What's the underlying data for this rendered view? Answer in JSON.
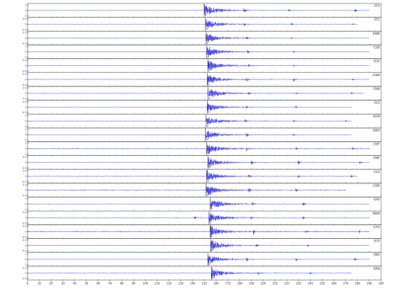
{
  "chart_data": {
    "type": "line",
    "title": "",
    "xlabel": "",
    "ylabel": "",
    "xlim": [
      0,
      300
    ],
    "x_ticks": [
      0,
      10,
      20,
      30,
      40,
      50,
      60,
      70,
      80,
      90,
      100,
      110,
      120,
      130,
      140,
      150,
      160,
      170,
      180,
      190,
      200,
      210,
      220,
      230,
      240,
      250,
      260,
      270,
      280,
      290,
      300
    ],
    "grid": false,
    "legend": "none",
    "line_color": "#0000dd",
    "pick_color": "#000000",
    "pick_label": "P",
    "trace_y_ticks": [
      [
        "2",
        "0",
        "-2"
      ],
      [
        "0.5",
        "0",
        "-0.5"
      ],
      [
        "0.5",
        "0",
        "-0.5"
      ],
      [
        "1",
        "0",
        "-1"
      ],
      [
        "0.5",
        "0",
        "-0.5"
      ],
      [
        "0.5",
        "0",
        "-0.5"
      ],
      [
        "0.5",
        "0",
        "-0.5"
      ],
      [
        "0.5",
        "0",
        "-0.5"
      ],
      [
        "2",
        "0",
        "-2"
      ],
      [
        "1",
        "0",
        "-1"
      ],
      [
        "1",
        "0",
        "-1"
      ],
      [
        "0.5",
        "0",
        "-0.5"
      ],
      [
        "0.5",
        "0",
        "-0.5"
      ],
      [
        "0.5",
        "0",
        "-0.5"
      ],
      [
        "1",
        "0",
        "-1"
      ],
      [
        "0.5",
        "0",
        "-0.5"
      ],
      [
        "0.5",
        "0",
        "-0.5"
      ],
      [
        "0.5",
        "0",
        "-0.5"
      ],
      [
        "1",
        "0",
        "-1"
      ],
      [
        "0.2",
        "0",
        "-0.2"
      ]
    ],
    "series": [
      {
        "name": "STA",
        "onset": 150.0,
        "end": 290,
        "amp": 0.95,
        "noise": 0.06,
        "bursts": [
          [
            184,
            0.45
          ],
          [
            222,
            0.25
          ],
          [
            278,
            0.3
          ]
        ]
      },
      {
        "name": "STC",
        "onset": 151.0,
        "end": 280,
        "amp": 0.85,
        "noise": 0.05,
        "bursts": [
          [
            184,
            0.25
          ],
          [
            224,
            0.2
          ],
          [
            276,
            0.15
          ]
        ]
      },
      {
        "name": "SWB",
        "onset": 151.5,
        "end": 290,
        "amp": 0.9,
        "noise": 0.06,
        "bursts": [
          [
            186,
            0.35
          ],
          [
            224,
            0.25
          ]
        ]
      },
      {
        "name": "CSB",
        "onset": 152.0,
        "end": 290,
        "amp": 0.9,
        "noise": 0.05,
        "bursts": [
          [
            187,
            0.35
          ],
          [
            226,
            0.2
          ]
        ]
      },
      {
        "name": "SUS",
        "onset": 153.0,
        "end": 290,
        "amp": 0.9,
        "noise": 0.06,
        "bursts": [
          [
            188,
            0.3
          ],
          [
            226,
            0.2
          ]
        ]
      },
      {
        "name": "CHM",
        "onset": 152.5,
        "end": 290,
        "amp": 0.85,
        "noise": 0.06,
        "bursts": [
          [
            186,
            0.35
          ],
          [
            226,
            0.3
          ],
          [
            276,
            0.2
          ]
        ]
      },
      {
        "name": "CNN",
        "onset": 153.0,
        "end": 285,
        "amp": 0.95,
        "noise": 0.07,
        "bursts": [
          [
            188,
            0.3
          ],
          [
            228,
            0.25
          ],
          [
            275,
            0.2
          ]
        ]
      },
      {
        "name": "SLS",
        "onset": 152.5,
        "end": 275,
        "amp": 0.8,
        "noise": 0.06,
        "bursts": [
          [
            186,
            0.3
          ],
          [
            228,
            0.2
          ]
        ]
      },
      {
        "name": "SGN",
        "onset": 151.5,
        "end": 275,
        "amp": 0.85,
        "noise": 0.05,
        "bursts": [
          [
            185,
            0.3
          ],
          [
            226,
            0.2
          ],
          [
            270,
            0.15
          ]
        ]
      },
      {
        "name": "DBH",
        "onset": 151.0,
        "end": 275,
        "amp": 0.85,
        "noise": 0.05,
        "bursts": [
          [
            186,
            0.35
          ],
          [
            226,
            0.2
          ]
        ]
      },
      {
        "name": "CDF",
        "onset": 152.0,
        "end": 290,
        "amp": 0.9,
        "noise": 0.1,
        "bursts": [
          [
            186,
            0.4
          ],
          [
            228,
            0.3
          ],
          [
            276,
            0.25
          ]
        ]
      },
      {
        "name": "ANR",
        "onset": 153.0,
        "end": 290,
        "amp": 0.85,
        "noise": 0.06,
        "bursts": [
          [
            190,
            0.55
          ],
          [
            230,
            0.35
          ],
          [
            282,
            0.3
          ]
        ]
      },
      {
        "name": "OLS",
        "onset": 152.0,
        "end": 280,
        "amp": 0.85,
        "noise": 0.08,
        "bursts": [
          [
            188,
            0.35
          ],
          [
            230,
            0.3
          ],
          [
            275,
            0.2
          ]
        ]
      },
      {
        "name": "CDR",
        "onset": 151.5,
        "end": 270,
        "amp": 0.9,
        "noise": 0.1,
        "bursts": [
          [
            188,
            0.4
          ],
          [
            228,
            0.3
          ]
        ]
      },
      {
        "name": "SAS",
        "onset": 155.0,
        "end": 290,
        "amp": 0.9,
        "noise": 0.06,
        "bursts": [
          [
            191,
            0.45
          ],
          [
            234,
            0.35
          ]
        ]
      },
      {
        "name": "SWN",
        "onset": 154.0,
        "end": 290,
        "amp": 0.85,
        "noise": 0.07,
        "bursts": [
          [
            142,
            0.3
          ],
          [
            190,
            0.35
          ],
          [
            234,
            0.25
          ]
        ]
      },
      {
        "name": "STH",
        "onset": 155.0,
        "end": 290,
        "amp": 0.95,
        "noise": 0.1,
        "bursts": [
          [
            192,
            0.4
          ],
          [
            236,
            0.25
          ],
          [
            282,
            0.25
          ]
        ]
      },
      {
        "name": "SCP",
        "onset": 155.5,
        "end": 290,
        "amp": 0.9,
        "noise": 0.06,
        "bursts": [
          [
            194,
            0.35
          ],
          [
            238,
            0.25
          ]
        ]
      },
      {
        "name": "SNS",
        "onset": 153.0,
        "end": 290,
        "amp": 0.8,
        "noise": 0.05,
        "bursts": [
          [
            186,
            0.35
          ],
          [
            228,
            0.3
          ],
          [
            278,
            0.25
          ]
        ]
      },
      {
        "name": "SRN",
        "onset": 156.0,
        "end": 275,
        "amp": 0.9,
        "noise": 0.07,
        "bursts": [
          [
            196,
            0.35
          ],
          [
            240,
            0.2
          ]
        ]
      }
    ]
  }
}
